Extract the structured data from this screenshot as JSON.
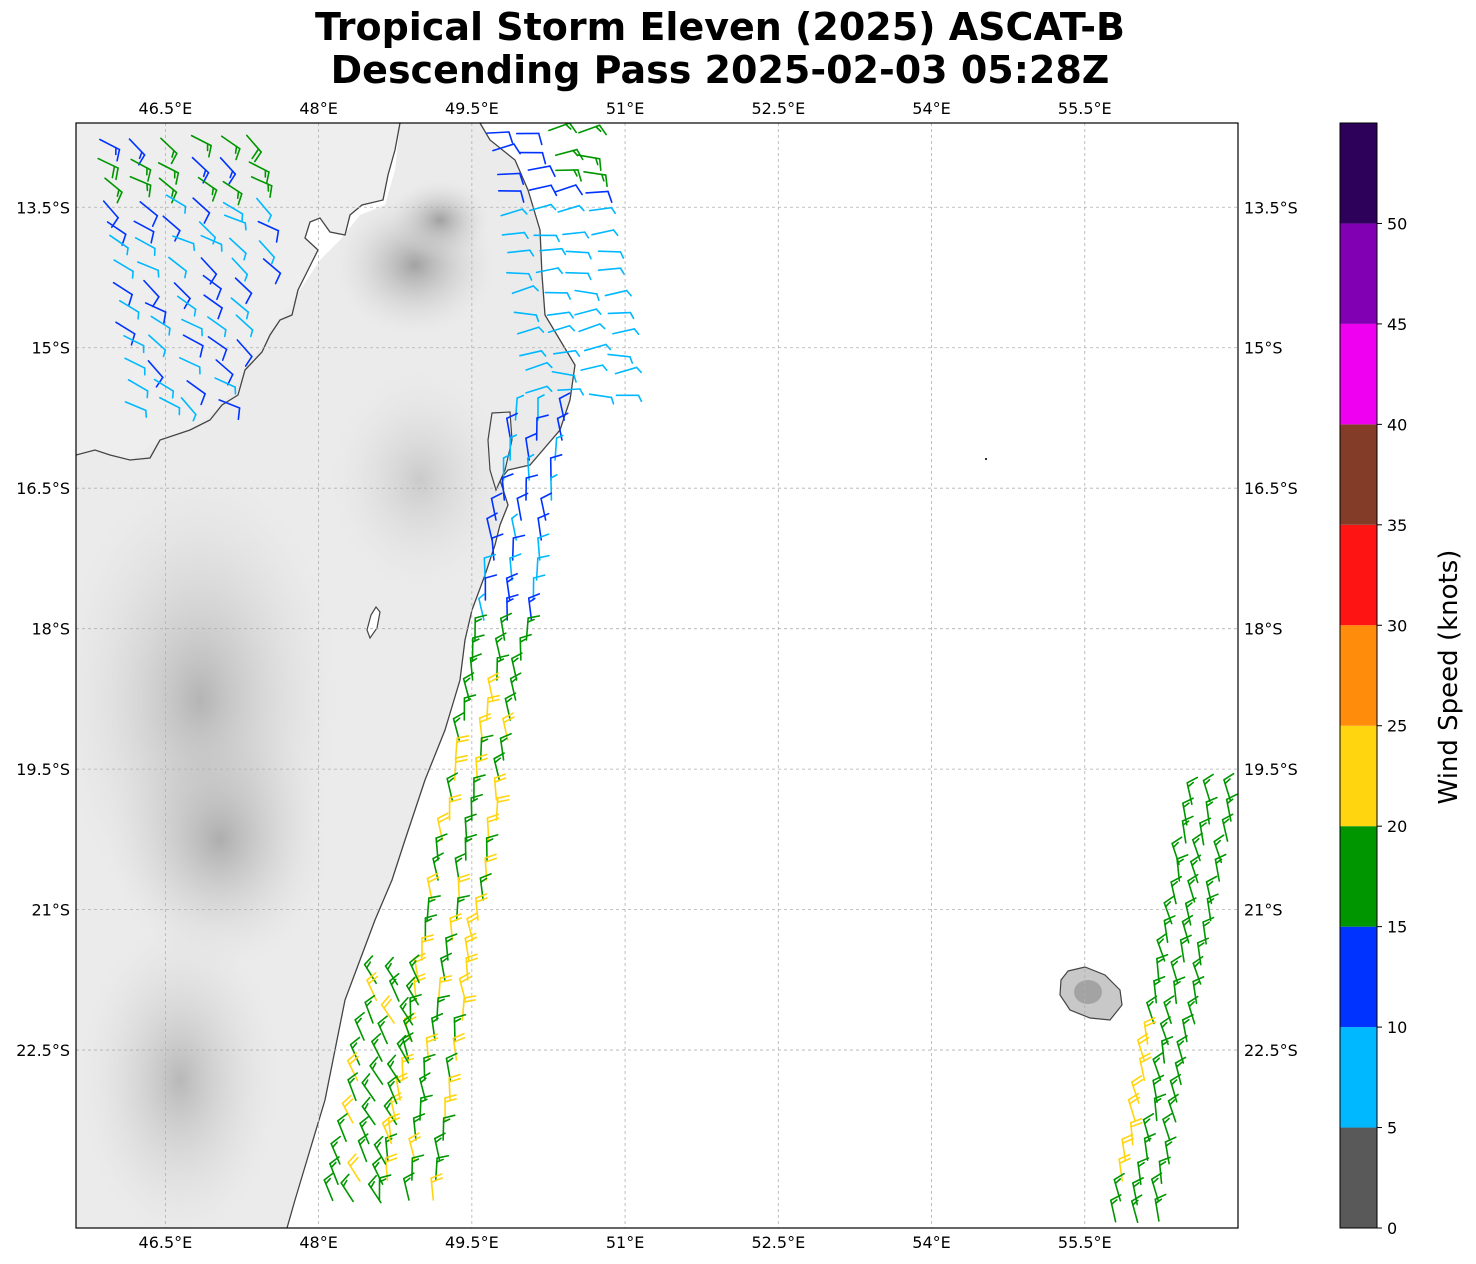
{
  "title": {
    "line1": "Tropical Storm Eleven (2025) ASCAT-B",
    "line2": "Descending Pass 2025-02-03 05:28Z"
  },
  "map": {
    "lon_range": [
      45.625,
      57.0
    ],
    "lat_range": [
      -24.4,
      -12.6
    ],
    "lon_ticks": [
      {
        "value": 46.5,
        "label": "46.5°E"
      },
      {
        "value": 48.0,
        "label": "48°E"
      },
      {
        "value": 49.5,
        "label": "49.5°E"
      },
      {
        "value": 51.0,
        "label": "51°E"
      },
      {
        "value": 52.5,
        "label": "52.5°E"
      },
      {
        "value": 54.0,
        "label": "54°E"
      },
      {
        "value": 55.5,
        "label": "55.5°E"
      }
    ],
    "lat_ticks": [
      {
        "value": -13.5,
        "label": "13.5°S"
      },
      {
        "value": -15.0,
        "label": "15°S"
      },
      {
        "value": -16.5,
        "label": "16.5°S"
      },
      {
        "value": -18.0,
        "label": "18°S"
      },
      {
        "value": -19.5,
        "label": "19.5°S"
      },
      {
        "value": -21.0,
        "label": "21°S"
      },
      {
        "value": -22.5,
        "label": "22.5°S"
      }
    ],
    "gridlines": true,
    "labels_on": [
      "top",
      "bottom",
      "left",
      "right"
    ]
  },
  "colorbar": {
    "label": "Wind Speed (knots)",
    "tick_labels": [
      "0",
      "5",
      "10",
      "15",
      "20",
      "25",
      "30",
      "35",
      "40",
      "45",
      "50"
    ],
    "bins": [
      {
        "min": 0,
        "max": 5,
        "color": "#595959"
      },
      {
        "min": 5,
        "max": 10,
        "color": "#00b8ff"
      },
      {
        "min": 10,
        "max": 15,
        "color": "#0033ff"
      },
      {
        "min": 15,
        "max": 20,
        "color": "#009600"
      },
      {
        "min": 20,
        "max": 25,
        "color": "#ffd50f"
      },
      {
        "min": 25,
        "max": 30,
        "color": "#ff8c0a"
      },
      {
        "min": 30,
        "max": 35,
        "color": "#ff1414"
      },
      {
        "min": 35,
        "max": 40,
        "color": "#823c28"
      },
      {
        "min": 40,
        "max": 45,
        "color": "#f000f0"
      },
      {
        "min": 45,
        "max": 50,
        "color": "#8200b4"
      },
      {
        "min": 50,
        "max": 55,
        "color": "#2d005a"
      }
    ]
  },
  "colors": {
    "land_light": "#f2f2f2",
    "land_dark": "#a8a8a8",
    "coastline": "#444444"
  }
}
